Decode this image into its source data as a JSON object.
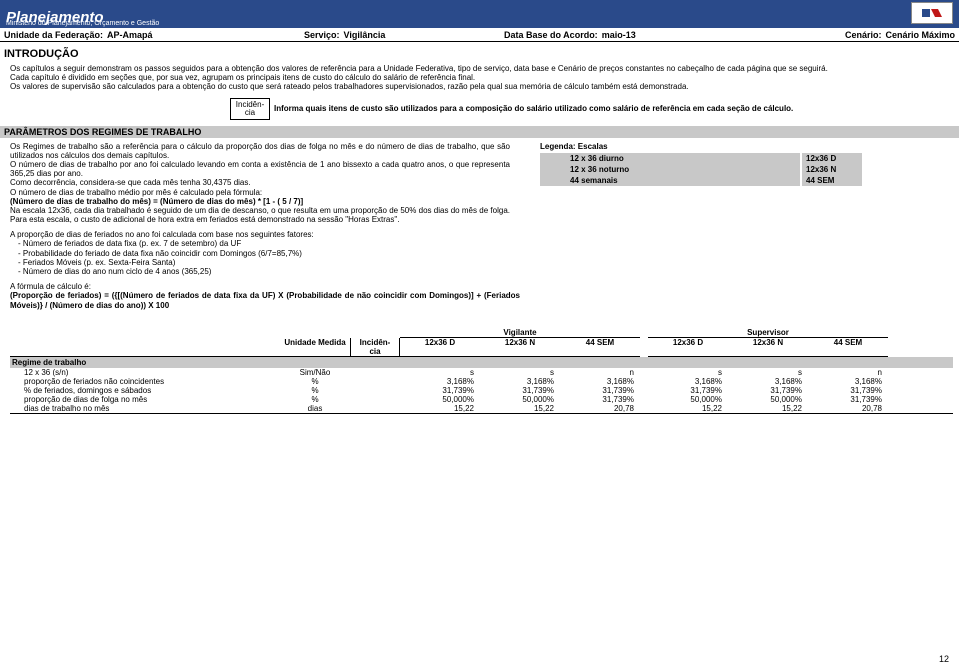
{
  "banner": {
    "title": "Planejamento",
    "subtitle": "Ministério do Planejamento, Orçamento e Gestão"
  },
  "info_bar": {
    "uf_label": "Unidade da Federação:",
    "uf_value": "AP-Amapá",
    "serv_label": "Serviço:",
    "serv_value": "Vigilância",
    "db_label": "Data Base do Acordo:",
    "db_value": "maio-13",
    "cen_label": "Cenário:",
    "cen_value": "Cenário Máximo"
  },
  "intro": {
    "title": "INTRODUÇÃO",
    "p1": "Os capítulos a seguir demonstram os passos seguidos para a obtenção dos valores de referência para a Unidade Federativa, tipo de serviço, data base e Cenário de preços constantes no cabeçalho de cada página que se seguirá.",
    "p2": "Cada capítulo é dividido em seções que, por sua vez, agrupam os principais itens de custo do cálculo do salário de referência final.",
    "p3": "Os valores de supervisão são calculados para a obtenção do custo que será rateado pelos trabalhadores supervisionados, razão pela qual sua memória de cálculo também está demonstrada."
  },
  "callout": {
    "box_l1": "Incidên-",
    "box_l2": "cia",
    "text": "Informa quais itens de custo são utilizados para a composição do salário utilizado como salário de referência em cada seção de cálculo."
  },
  "param_bar": "PARÂMETROS DOS REGIMES DE TRABALHO",
  "regimes_text": {
    "p1": "Os Regimes de trabalho são a referência para o cálculo da proporção dos dias de folga no mês e do número de dias de trabalho, que são utilizados nos cálculos dos demais capítulos.",
    "p2": "O número de dias de trabalho por ano foi calculado levando em conta a existência de 1 ano bissexto a cada quatro anos, o que representa 365,25 dias por ano.",
    "p3": "Como decorrência, considera-se que cada mês tenha 30,4375 dias.",
    "p4": "O número de dias de trabalho médio por mês é calculado pela fórmula:",
    "p5": "(Número de dias de trabalho do mês) = (Número de dias do mês) * [1 -  ( 5 / 7)]",
    "p6": "Na escala 12x36, cada dia trabalhado é seguido de um dia de descanso, o que resulta em uma proporção de 50% dos dias do mês de folga. Para esta escala, o custo de adicional de hora extra em feriados está demonstrado na sessão \"Horas Extras\"."
  },
  "escalas": {
    "title": "Legenda: Escalas",
    "rows": [
      {
        "label": "12 x 36 diurno",
        "code": "12x36 D"
      },
      {
        "label": "12 x 36 noturno",
        "code": "12x36 N"
      },
      {
        "label": "44 semanais",
        "code": "44 SEM"
      }
    ]
  },
  "feriados": {
    "p1": "A proporção de dias de feriados no ano foi calculada com base nos seguintes fatores:",
    "l1": " - Número de feriados de data fixa (p. ex. 7 de setembro) da UF",
    "l2": " - Probabilidade do feriado de data fixa não coincidir com Domingos (6/7=85,7%)",
    "l3": " - Feriados Móveis (p. ex. Sexta-Feira Santa)",
    "l4": " - Número de dias do ano num ciclo de 4 anos (365,25)"
  },
  "formula": {
    "p1": "A fórmula de cálculo é:",
    "p2": "(Proporção de feriados) = ({[(Número de feriados de data fixa da UF) X (Probabilidade de não coincidir com Domingos)] + (Feriados Móveis)} / (Número de dias do ano)) X 100"
  },
  "table": {
    "unit_header": "Unidade Medida",
    "inc_header_l1": "Incidên-",
    "inc_header_l2": "cia",
    "group1": "Vigilante",
    "group2": "Supervisor",
    "subcols": [
      "12x36 D",
      "12x36 N",
      "44 SEM",
      "12x36 D",
      "12x36 N",
      "44 SEM"
    ],
    "section": "Regime de trabalho",
    "rows": [
      {
        "label": "12 x 36 (s/n)",
        "unit": "Sim/Não",
        "vals": [
          "s",
          "s",
          "n",
          "s",
          "s",
          "n"
        ]
      },
      {
        "label": "proporção de feriados não coincidentes",
        "unit": "%",
        "vals": [
          "3,168%",
          "3,168%",
          "3,168%",
          "3,168%",
          "3,168%",
          "3,168%"
        ]
      },
      {
        "label": "% de feriados, domingos e sábados",
        "unit": "%",
        "vals": [
          "31,739%",
          "31,739%",
          "31,739%",
          "31,739%",
          "31,739%",
          "31,739%"
        ]
      },
      {
        "label": "proporção de dias de folga no mês",
        "unit": "%",
        "vals": [
          "50,000%",
          "50,000%",
          "31,739%",
          "50,000%",
          "50,000%",
          "31,739%"
        ]
      },
      {
        "label": "dias de trabalho no mês",
        "unit": "dias",
        "vals": [
          "15,22",
          "15,22",
          "20,78",
          "15,22",
          "15,22",
          "20,78"
        ]
      }
    ]
  },
  "page_number": "12"
}
